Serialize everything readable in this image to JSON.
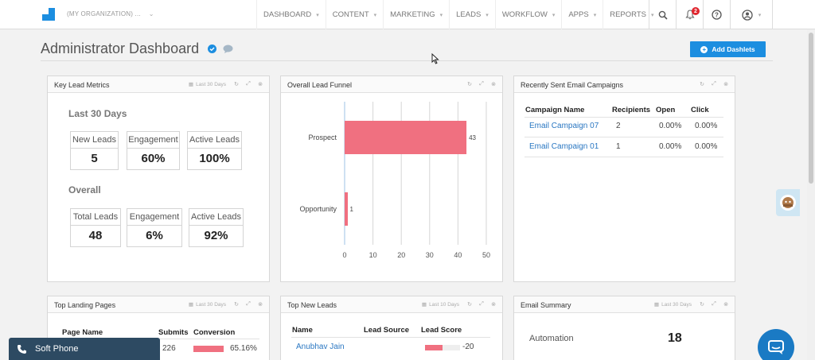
{
  "nav": {
    "org": "(MY ORGANIZATION) ...",
    "items": [
      "DASHBOARD",
      "CONTENT",
      "MARKETING",
      "LEADS",
      "WORKFLOW",
      "APPS",
      "REPORTS"
    ],
    "notifications": "2"
  },
  "header": {
    "title": "Administrator Dashboard",
    "add_label": "Add Dashlets"
  },
  "key_metrics": {
    "title": "Key Lead Metrics",
    "range": "Last 30 Days",
    "recent_label": "Last 30 Days",
    "recent": [
      {
        "label": "New Leads",
        "value": "5"
      },
      {
        "label": "Engagement",
        "value": "60%"
      },
      {
        "label": "Active Leads",
        "value": "100%"
      }
    ],
    "overall_label": "Overall",
    "overall": [
      {
        "label": "Total Leads",
        "value": "48"
      },
      {
        "label": "Engagement",
        "value": "6%"
      },
      {
        "label": "Active Leads",
        "value": "92%"
      }
    ]
  },
  "funnel": {
    "title": "Overall Lead Funnel"
  },
  "chart_data": {
    "type": "bar",
    "orientation": "horizontal",
    "categories": [
      "Prospect",
      "Opportunity"
    ],
    "values": [
      43,
      1
    ],
    "xlim": [
      0,
      50
    ],
    "xticks": [
      0,
      10,
      20,
      30,
      40,
      50
    ],
    "grid": true,
    "color": "#f07080"
  },
  "campaigns": {
    "title": "Recently Sent Email Campaigns",
    "headers": [
      "Campaign Name",
      "Recipients",
      "Open",
      "Click"
    ],
    "rows": [
      [
        "Email Campaign 07",
        "2",
        "0.00%",
        "0.00%"
      ],
      [
        "Email Campaign 01",
        "1",
        "0.00%",
        "0.00%"
      ]
    ]
  },
  "landing": {
    "title": "Top Landing Pages",
    "range": "Last 30 Days",
    "headers": [
      "Page Name",
      "Submits",
      "Conversion"
    ],
    "rows": [
      [
        "",
        "226",
        "65.16%"
      ]
    ],
    "conversion_fraction": 0.6516
  },
  "new_leads": {
    "title": "Top New Leads",
    "range": "Last 10 Days",
    "headers": [
      "Name",
      "Lead Source",
      "Lead Score"
    ],
    "rows": [
      [
        "Anubhav Jain",
        "",
        "-20"
      ]
    ],
    "score_fraction": 0.5
  },
  "email_summary": {
    "title": "Email Summary",
    "range": "Last 30 Days",
    "label": "Automation",
    "value": "18"
  },
  "softphone": {
    "label": "Soft Phone"
  },
  "colors": {
    "accent": "#1c8ee0",
    "bar": "#f07080",
    "link": "#2a77c2"
  }
}
